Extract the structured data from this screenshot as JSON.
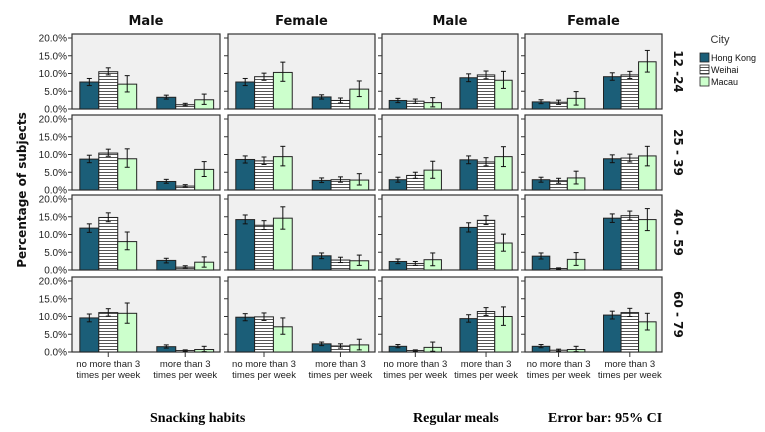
{
  "chart_data": {
    "type": "bar",
    "ylabel": "Percentage of subjects",
    "y_tick_labels": [
      "0.0%",
      "5.0%",
      "10.0%",
      "15.0%",
      "20.0%"
    ],
    "ylim": [
      0,
      20
    ],
    "grid": false,
    "legend_placement": "right",
    "legend": {
      "title": "City",
      "entries": [
        {
          "name": "Hong Kong",
          "color": "#1b5e78",
          "pattern": "solid"
        },
        {
          "name": "Weihai",
          "color": "#ffffff",
          "pattern": "horizontal-stripes"
        },
        {
          "name": "Macau",
          "color": "#ccffcc",
          "pattern": "solid"
        }
      ]
    },
    "categories": [
      "no more than 3 times per week",
      "more than 3 times per week"
    ],
    "category_lines": [
      [
        "no more than 3",
        "times per week"
      ],
      [
        "more than 3",
        "times per week"
      ]
    ],
    "columns": [
      {
        "title": "Male",
        "group": "Snacking habits"
      },
      {
        "title": "Female",
        "group": "Snacking habits"
      },
      {
        "title": "Male",
        "group": "Regular meals"
      },
      {
        "title": "Female",
        "group": "Regular meals"
      }
    ],
    "rows": [
      "12 -24",
      "25 - 39",
      "40 - 59",
      "60 - 79"
    ],
    "series": [
      "Hong Kong",
      "Weihai",
      "Macau"
    ],
    "panels": [
      [
        {
          "values": [
            [
              7.6,
              10.5,
              7.0
            ],
            [
              3.3,
              1.2,
              2.6
            ]
          ],
          "ci": [
            [
              [
                6.6,
                8.6
              ],
              [
                9.6,
                11.6
              ],
              [
                4.8,
                9.4
              ]
            ],
            [
              [
                2.8,
                3.9
              ],
              [
                0.9,
                1.6
              ],
              [
                1.3,
                4.2
              ]
            ]
          ]
        },
        {
          "values": [
            [
              7.6,
              9.1,
              10.3
            ],
            [
              3.4,
              2.4,
              5.6
            ]
          ],
          "ci": [
            [
              [
                6.6,
                8.6
              ],
              [
                8.1,
                10.1
              ],
              [
                7.8,
                13.2
              ]
            ],
            [
              [
                2.8,
                4.0
              ],
              [
                1.7,
                3.1
              ],
              [
                3.5,
                7.9
              ]
            ]
          ]
        },
        {
          "values": [
            [
              2.4,
              2.2,
              1.8
            ],
            [
              8.8,
              9.6,
              8.1
            ]
          ],
          "ci": [
            [
              [
                1.8,
                3.0
              ],
              [
                1.6,
                2.8
              ],
              [
                0.6,
                3.2
              ]
            ],
            [
              [
                7.7,
                9.9
              ],
              [
                8.5,
                10.7
              ],
              [
                5.8,
                10.6
              ]
            ]
          ]
        },
        {
          "values": [
            [
              2.0,
              1.9,
              3.0
            ],
            [
              9.1,
              9.6,
              13.3
            ]
          ],
          "ci": [
            [
              [
                1.5,
                2.6
              ],
              [
                1.3,
                2.5
              ],
              [
                1.1,
                4.9
              ]
            ],
            [
              [
                8.1,
                10.2
              ],
              [
                8.6,
                10.6
              ],
              [
                10.4,
                16.5
              ]
            ]
          ]
        }
      ],
      [
        {
          "values": [
            [
              8.7,
              10.4,
              8.8
            ],
            [
              2.4,
              1.1,
              5.8
            ]
          ],
          "ci": [
            [
              [
                7.7,
                9.8
              ],
              [
                9.5,
                11.5
              ],
              [
                6.4,
                11.6
              ]
            ],
            [
              [
                1.9,
                3.0
              ],
              [
                0.8,
                1.5
              ],
              [
                3.8,
                8.0
              ]
            ]
          ]
        },
        {
          "values": [
            [
              8.6,
              8.2,
              9.4
            ],
            [
              2.7,
              2.9,
              2.8
            ]
          ],
          "ci": [
            [
              [
                7.6,
                9.6
              ],
              [
                7.2,
                9.3
              ],
              [
                6.8,
                12.3
              ]
            ],
            [
              [
                2.1,
                3.4
              ],
              [
                2.2,
                3.7
              ],
              [
                1.4,
                4.6
              ]
            ]
          ]
        },
        {
          "values": [
            [
              2.9,
              4.1,
              5.6
            ],
            [
              8.5,
              7.9,
              9.4
            ]
          ],
          "ci": [
            [
              [
                2.2,
                3.6
              ],
              [
                3.3,
                5.0
              ],
              [
                3.3,
                8.1
              ]
            ],
            [
              [
                7.4,
                9.6
              ],
              [
                6.8,
                9.1
              ],
              [
                6.6,
                12.2
              ]
            ]
          ]
        },
        {
          "values": [
            [
              2.9,
              2.6,
              3.4
            ],
            [
              8.8,
              9.0,
              9.6
            ]
          ],
          "ci": [
            [
              [
                2.2,
                3.6
              ],
              [
                1.9,
                3.3
              ],
              [
                1.7,
                5.3
              ]
            ],
            [
              [
                7.7,
                9.9
              ],
              [
                7.9,
                10.1
              ],
              [
                6.8,
                12.3
              ]
            ]
          ]
        }
      ],
      [
        {
          "values": [
            [
              11.8,
              14.8,
              8.0
            ],
            [
              2.7,
              0.8,
              2.2
            ]
          ],
          "ci": [
            [
              [
                10.6,
                13.0
              ],
              [
                13.6,
                16.1
              ],
              [
                5.7,
                10.7
              ]
            ],
            [
              [
                2.0,
                3.3
              ],
              [
                0.5,
                1.2
              ],
              [
                0.8,
                3.7
              ]
            ]
          ]
        },
        {
          "values": [
            [
              14.2,
              12.6,
              14.6
            ],
            [
              4.0,
              2.8,
              2.6
            ]
          ],
          "ci": [
            [
              [
                13.0,
                15.5
              ],
              [
                11.4,
                13.9
              ],
              [
                11.5,
                17.8
              ]
            ],
            [
              [
                3.2,
                4.8
              ],
              [
                2.1,
                3.6
              ],
              [
                1.3,
                4.2
              ]
            ]
          ]
        },
        {
          "values": [
            [
              2.4,
              1.8,
              2.9
            ],
            [
              12.0,
              14.0,
              7.6
            ]
          ],
          "ci": [
            [
              [
                1.8,
                3.1
              ],
              [
                1.3,
                2.4
              ],
              [
                1.2,
                4.8
              ]
            ],
            [
              [
                10.7,
                13.3
              ],
              [
                12.8,
                15.3
              ],
              [
                5.3,
                10.1
              ]
            ]
          ]
        },
        {
          "values": [
            [
              3.9,
              0.4,
              3.0
            ],
            [
              14.6,
              15.3,
              14.2
            ]
          ],
          "ci": [
            [
              [
                3.1,
                4.8
              ],
              [
                0.2,
                0.6
              ],
              [
                1.3,
                4.9
              ]
            ],
            [
              [
                13.4,
                15.8
              ],
              [
                14.1,
                16.6
              ],
              [
                11.1,
                17.3
              ]
            ]
          ]
        }
      ],
      [
        {
          "values": [
            [
              9.6,
              11.1,
              10.9
            ],
            [
              1.5,
              0.4,
              0.7
            ]
          ],
          "ci": [
            [
              [
                8.5,
                10.7
              ],
              [
                10.1,
                12.2
              ],
              [
                8.1,
                13.8
              ]
            ],
            [
              [
                1.1,
                2.0
              ],
              [
                0.2,
                0.6
              ],
              [
                0.1,
                1.6
              ]
            ]
          ]
        },
        {
          "values": [
            [
              9.8,
              9.9,
              7.1
            ],
            [
              2.3,
              1.7,
              2.0
            ]
          ],
          "ci": [
            [
              [
                8.8,
                10.8
              ],
              [
                8.9,
                11.0
              ],
              [
                5.0,
                9.6
              ]
            ],
            [
              [
                1.8,
                2.8
              ],
              [
                1.1,
                2.3
              ],
              [
                0.6,
                3.6
              ]
            ]
          ]
        },
        {
          "values": [
            [
              1.6,
              0.4,
              1.3
            ],
            [
              9.4,
              11.4,
              10.0
            ]
          ],
          "ci": [
            [
              [
                1.2,
                2.1
              ],
              [
                0.2,
                0.6
              ],
              [
                0.2,
                2.8
              ]
            ],
            [
              [
                8.4,
                10.5
              ],
              [
                10.3,
                12.5
              ],
              [
                7.5,
                12.7
              ]
            ]
          ]
        },
        {
          "values": [
            [
              1.6,
              0.5,
              0.7
            ],
            [
              10.4,
              11.1,
              8.5
            ]
          ],
          "ci": [
            [
              [
                1.2,
                2.1
              ],
              [
                0.2,
                0.8
              ],
              [
                0.1,
                1.6
              ]
            ],
            [
              [
                9.3,
                11.5
              ],
              [
                10.0,
                12.3
              ],
              [
                6.2,
                10.9
              ]
            ]
          ]
        }
      ]
    ]
  },
  "footer": {
    "group1": "Snacking habits",
    "group2": "Regular meals",
    "error_note": "Error bar: 95% CI"
  }
}
